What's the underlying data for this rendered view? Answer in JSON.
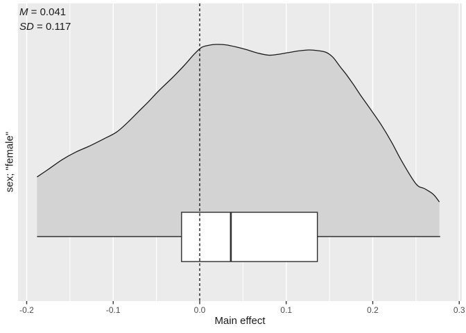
{
  "chart_data": {
    "type": "area",
    "variant": "density curve with inset boxplot (raincloud / specification-curve panel)",
    "title": "",
    "xlabel": "Main effect",
    "ylabel": "sex; \"female\"",
    "annotation": {
      "lines": [
        {
          "symbol": "M",
          "separator": " = ",
          "value": "0.041"
        },
        {
          "symbol": "SD",
          "separator": " = ",
          "value": "0.117"
        }
      ]
    },
    "x_ticks": {
      "values": [
        -0.2,
        -0.1,
        0.0,
        0.1,
        0.2,
        0.3
      ],
      "labels": [
        "-0.2",
        "-0.1",
        "0.0",
        "0.1",
        "0.2",
        "0.3"
      ]
    },
    "x_minor_ticks": [
      -0.15,
      -0.05,
      0.05,
      0.15,
      0.25
    ],
    "xlim": [
      -0.21,
      0.303
    ],
    "grid": "white major and minor vertical gridlines on gray panel",
    "legend": "none",
    "reference_line_x": 0.0,
    "density": {
      "y_unit": "normalized density (peak = 1)",
      "x_range": [
        -0.188,
        0.278
      ],
      "peak_x": 0.019,
      "points": [
        [
          -0.188,
          0.31
        ],
        [
          -0.175,
          0.35
        ],
        [
          -0.159,
          0.4
        ],
        [
          -0.143,
          0.44
        ],
        [
          -0.127,
          0.472
        ],
        [
          -0.111,
          0.508
        ],
        [
          -0.096,
          0.544
        ],
        [
          -0.083,
          0.595
        ],
        [
          -0.071,
          0.649
        ],
        [
          -0.059,
          0.703
        ],
        [
          -0.047,
          0.76
        ],
        [
          -0.032,
          0.825
        ],
        [
          -0.018,
          0.89
        ],
        [
          -0.006,
          0.951
        ],
        [
          0.002,
          0.984
        ],
        [
          0.01,
          0.995
        ],
        [
          0.019,
          1.0
        ],
        [
          0.03,
          0.998
        ],
        [
          0.042,
          0.987
        ],
        [
          0.054,
          0.973
        ],
        [
          0.067,
          0.955
        ],
        [
          0.08,
          0.944
        ],
        [
          0.09,
          0.948
        ],
        [
          0.102,
          0.957
        ],
        [
          0.114,
          0.966
        ],
        [
          0.126,
          0.971
        ],
        [
          0.136,
          0.968
        ],
        [
          0.146,
          0.959
        ],
        [
          0.154,
          0.933
        ],
        [
          0.162,
          0.886
        ],
        [
          0.17,
          0.84
        ],
        [
          0.178,
          0.789
        ],
        [
          0.186,
          0.735
        ],
        [
          0.198,
          0.659
        ],
        [
          0.21,
          0.58
        ],
        [
          0.222,
          0.49
        ],
        [
          0.234,
          0.389
        ],
        [
          0.25,
          0.274
        ],
        [
          0.26,
          0.249
        ],
        [
          0.27,
          0.22
        ],
        [
          0.277,
          0.18
        ]
      ]
    },
    "boxplot": {
      "lower_whisker": -0.188,
      "q1": -0.021,
      "median": 0.036,
      "q3": 0.136,
      "upper_whisker": 0.278
    },
    "colors": {
      "figure_background": "#FFFFFF",
      "panel_background": "#EBEBEB",
      "gridline": "#FFFFFF",
      "density_fill": "#D3D3D3",
      "curve_stroke": "#1A1A1A",
      "baseline_stroke": "#333333",
      "box_fill": "#FFFFFF",
      "box_stroke": "#2E2E2E",
      "reference_line": "#1A1A1A",
      "tick_mark": "#333333",
      "axis_text": "#4D4D4D",
      "title_text": "#1A1A1A"
    }
  }
}
